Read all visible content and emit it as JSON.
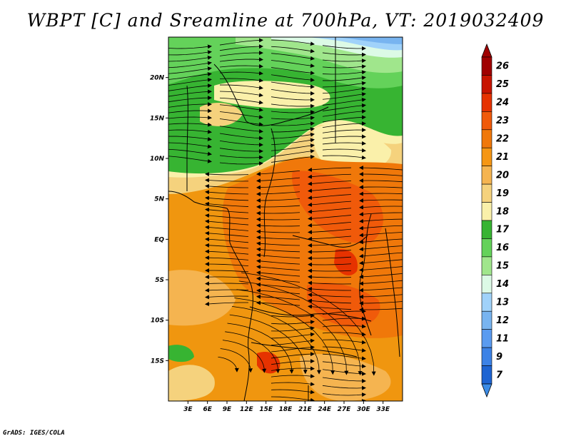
{
  "title": "WBPT [C] and Sreamline at 700hPa, VT: 2019032409",
  "credit": "GrADS: IGES/COLA",
  "map": {
    "variable": "WBPT",
    "units": "C",
    "level": "700hPa",
    "valid_time": "2019032409",
    "lon_range": [
      0,
      36
    ],
    "lat_range": [
      -20,
      25
    ],
    "lat_ticks": [
      {
        "value": 20,
        "label": "20N"
      },
      {
        "value": 15,
        "label": "15N"
      },
      {
        "value": 10,
        "label": "10N"
      },
      {
        "value": 5,
        "label": "5N"
      },
      {
        "value": 0,
        "label": "EQ"
      },
      {
        "value": -5,
        "label": "5S"
      },
      {
        "value": -10,
        "label": "10S"
      },
      {
        "value": -15,
        "label": "15S"
      }
    ],
    "lon_ticks": [
      {
        "value": 3,
        "label": "3E"
      },
      {
        "value": 6,
        "label": "6E"
      },
      {
        "value": 9,
        "label": "9E"
      },
      {
        "value": 12,
        "label": "12E"
      },
      {
        "value": 15,
        "label": "15E"
      },
      {
        "value": 18,
        "label": "18E"
      },
      {
        "value": 21,
        "label": "21E"
      },
      {
        "value": 24,
        "label": "24E"
      },
      {
        "value": 27,
        "label": "27E"
      },
      {
        "value": 30,
        "label": "30E"
      },
      {
        "value": 33,
        "label": "33E"
      }
    ]
  },
  "colorbar": {
    "levels": [
      {
        "label": "26",
        "color": "#a00000"
      },
      {
        "label": "25",
        "color": "#c81400"
      },
      {
        "label": "24",
        "color": "#e63200"
      },
      {
        "label": "23",
        "color": "#f05a0a"
      },
      {
        "label": "22",
        "color": "#f0780a"
      },
      {
        "label": "21",
        "color": "#f59614"
      },
      {
        "label": "20",
        "color": "#f5b450"
      },
      {
        "label": "19",
        "color": "#f5d27d"
      },
      {
        "label": "18",
        "color": "#faf0aa"
      },
      {
        "label": "17",
        "color": "#37b432"
      },
      {
        "label": "16",
        "color": "#64d25a"
      },
      {
        "label": "15",
        "color": "#a0e68c"
      },
      {
        "label": "14",
        "color": "#dcfae6"
      },
      {
        "label": "13",
        "color": "#a0d2fa"
      },
      {
        "label": "12",
        "color": "#78b4f0"
      },
      {
        "label": "11",
        "color": "#5a9bf0"
      },
      {
        "label": "9",
        "color": "#3c82e6"
      },
      {
        "label": "7",
        "color": "#1e64d2"
      }
    ],
    "under_color": "#3c8ce6"
  }
}
